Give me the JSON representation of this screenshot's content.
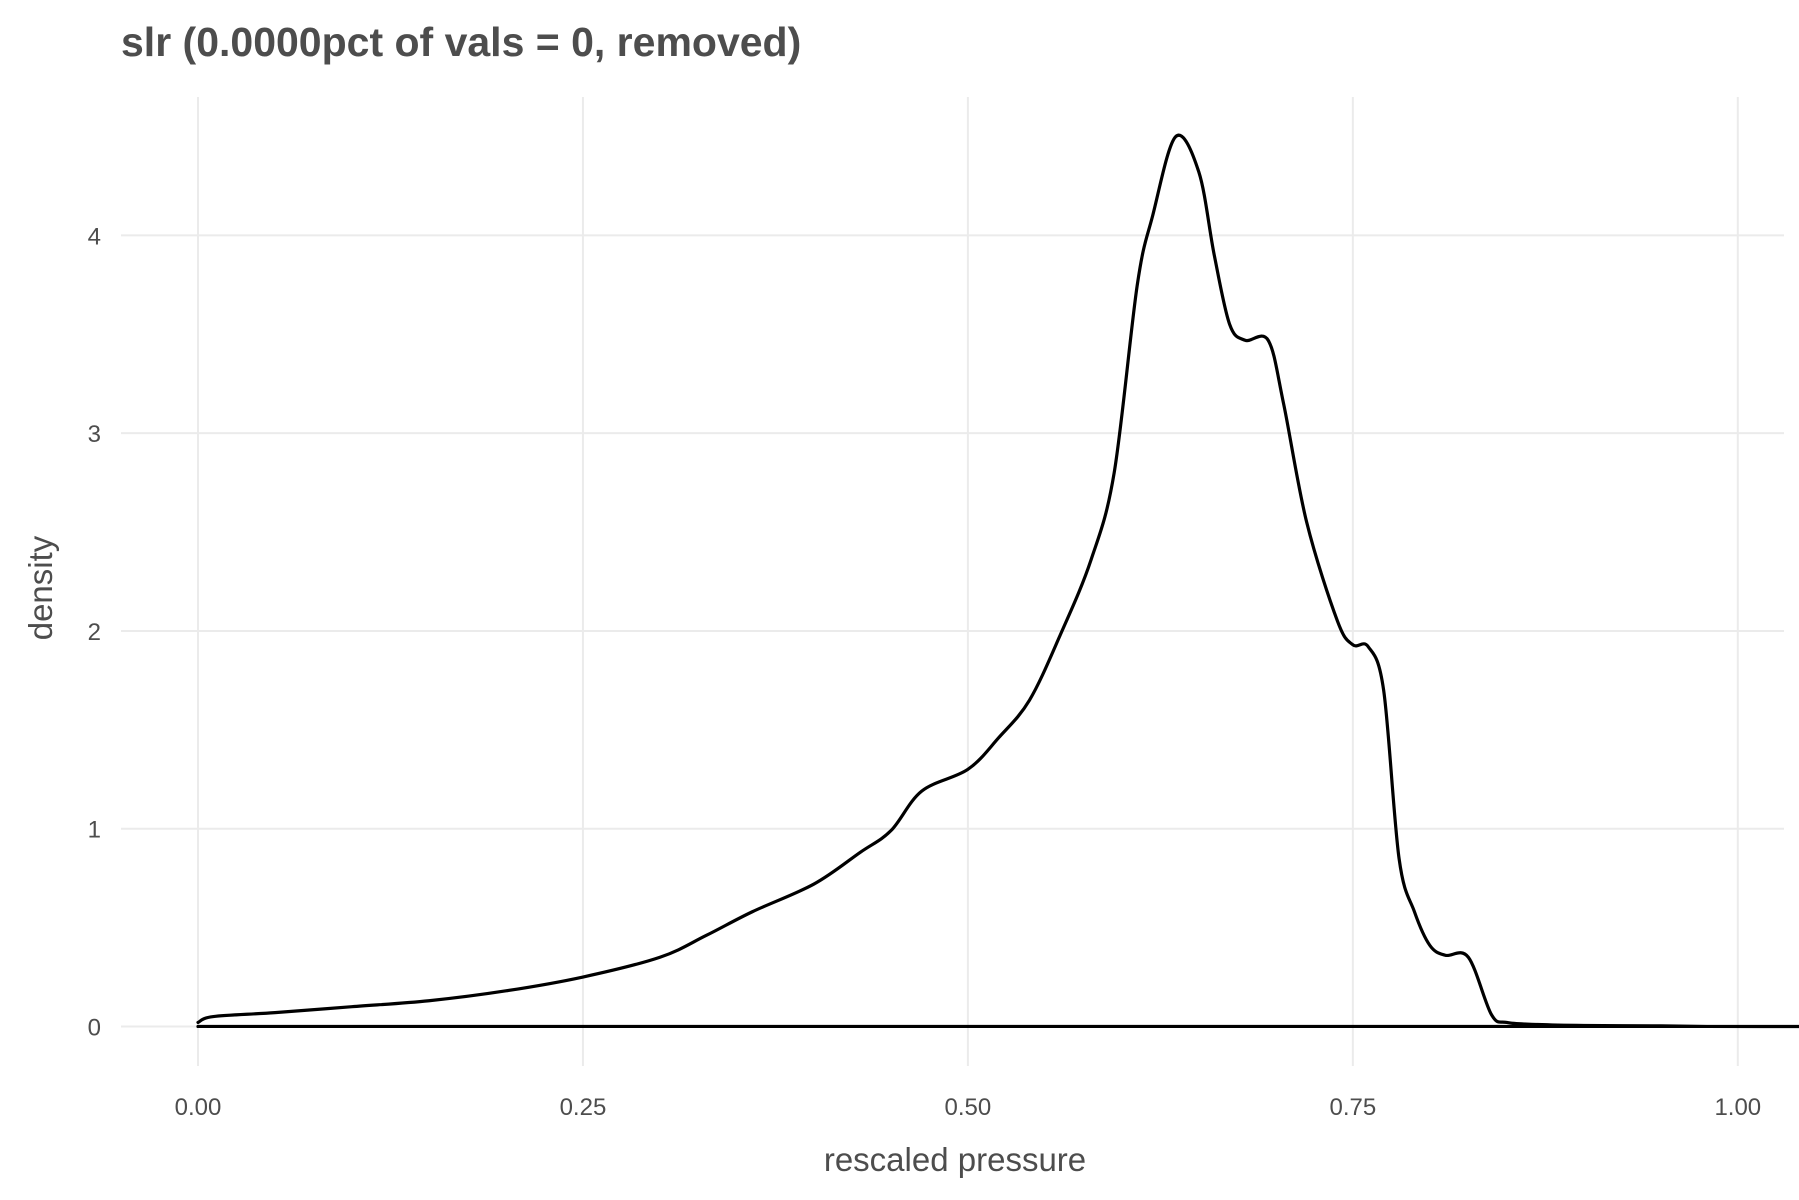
{
  "chart_data": {
    "type": "line",
    "title": "slr (0.0000pct of vals = 0, removed)",
    "xlabel": "rescaled pressure",
    "ylabel": "density",
    "xlim": [
      -0.05,
      1.03
    ],
    "ylim": [
      -0.2,
      4.7
    ],
    "x_ticks": [
      0.0,
      0.25,
      0.5,
      0.75,
      1.0
    ],
    "x_tick_labels": [
      "0.00",
      "0.25",
      "0.50",
      "0.75",
      "1.00"
    ],
    "y_ticks": [
      0,
      1,
      2,
      3,
      4
    ],
    "y_tick_labels": [
      "0",
      "1",
      "2",
      "3",
      "4"
    ],
    "grid": true,
    "legend": "none",
    "line_color": "#000000",
    "grid_color": "#ebebeb",
    "text_color": "#4d4d4d",
    "series": [
      {
        "x": [
          0.0,
          0.01,
          0.05,
          0.1,
          0.15,
          0.2,
          0.25,
          0.3,
          0.33,
          0.36,
          0.4,
          0.43,
          0.45,
          0.47,
          0.5,
          0.52,
          0.54,
          0.56,
          0.58,
          0.595,
          0.61,
          0.62,
          0.635,
          0.65,
          0.66,
          0.67,
          0.68,
          0.695,
          0.705,
          0.72,
          0.74,
          0.75,
          0.76,
          0.77,
          0.78,
          0.79,
          0.8,
          0.81,
          0.825,
          0.84,
          0.85,
          0.87,
          0.9,
          0.95,
          0.98,
          0.98,
          0.0
        ],
        "y": [
          0.02,
          0.05,
          0.07,
          0.1,
          0.13,
          0.18,
          0.25,
          0.35,
          0.46,
          0.58,
          0.72,
          0.88,
          0.99,
          1.19,
          1.3,
          1.46,
          1.65,
          1.98,
          2.36,
          2.8,
          3.75,
          4.1,
          4.5,
          4.32,
          3.9,
          3.55,
          3.47,
          3.47,
          3.15,
          2.55,
          2.05,
          1.93,
          1.92,
          1.7,
          0.85,
          0.58,
          0.41,
          0.36,
          0.35,
          0.06,
          0.02,
          0.01,
          0.005,
          0.003,
          0.0,
          0.0,
          0.0
        ]
      }
    ]
  }
}
